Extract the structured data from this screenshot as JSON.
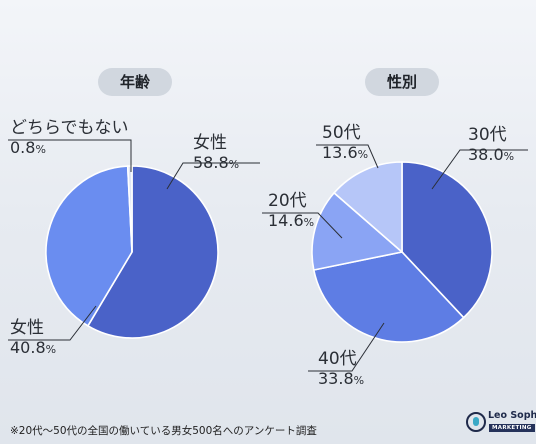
{
  "chart_data": [
    {
      "type": "pie",
      "title": "年齢",
      "slices": [
        {
          "label": "女性",
          "value": 58.8,
          "value_text": "58.8",
          "color": "#4a62c8"
        },
        {
          "label": "女性",
          "value": 40.8,
          "value_text": "40.8",
          "color": "#6a8df0"
        },
        {
          "label": "どちらでもない",
          "value": 0.8,
          "value_text": "0.8",
          "color": "#dfe6f5"
        }
      ],
      "unit": "%"
    },
    {
      "type": "pie",
      "title": "性別",
      "slices": [
        {
          "label": "30代",
          "value": 38.0,
          "value_text": "38.0",
          "color": "#4a62c8"
        },
        {
          "label": "40代",
          "value": 33.8,
          "value_text": "33.8",
          "color": "#5e7de4"
        },
        {
          "label": "20代",
          "value": 14.6,
          "value_text": "14.6",
          "color": "#8aa4f4"
        },
        {
          "label": "50代",
          "value": 13.6,
          "value_text": "13.6",
          "color": "#b6c6f8"
        }
      ],
      "unit": "%"
    }
  ],
  "footnote": "※20代〜50代の全国の働いている男女500名へのアンケート調査",
  "logo": {
    "name": "Leo Sophia",
    "tag": "MARKETING"
  }
}
